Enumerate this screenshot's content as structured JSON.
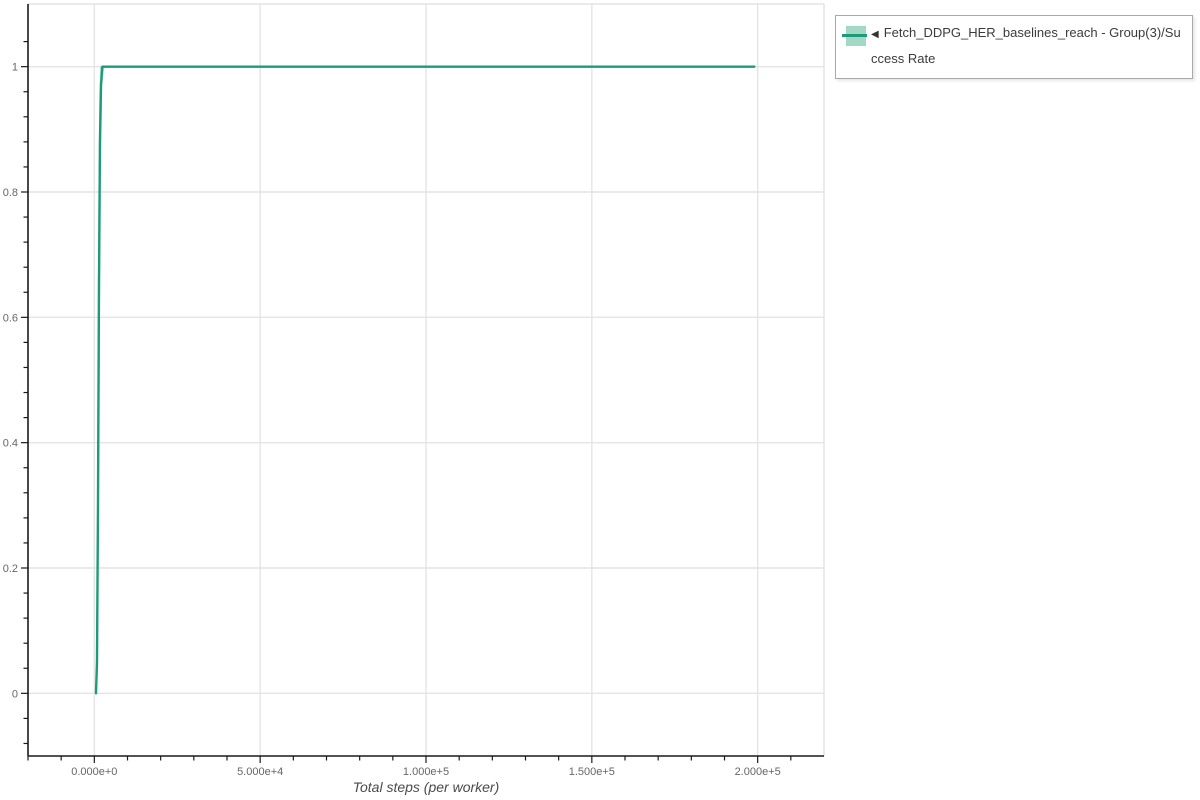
{
  "colors": {
    "background": "#ffffff",
    "line": "#1d9a78",
    "band": "rgba(29,154,120,0.30)",
    "swatch_fill": "#a3d8c4",
    "grid": "#e4e4e4",
    "spine": "#1a1a1a",
    "tick_label": "#666666",
    "axis_label": "#4a4a4a",
    "legend_border": "#a9a9a9",
    "legend_text": "#3b3b3b"
  },
  "legend": {
    "entries": [
      {
        "toggle_icon": "◀",
        "label": "Fetch_DDPG_HER_baselines_reach - Group(3)/Success Rate"
      }
    ]
  },
  "chart_data": {
    "type": "line",
    "title": "",
    "xlabel": "Total steps (per worker)",
    "ylabel": "",
    "xlim": [
      -20000,
      220000
    ],
    "ylim": [
      -0.1,
      1.1
    ],
    "grid": "major-both",
    "legend_position": "outside-top-right",
    "x_ticks": {
      "minor_step": 10000,
      "major": [
        {
          "value": 0,
          "label": "0.000e+0"
        },
        {
          "value": 50000,
          "label": "5.000e+4"
        },
        {
          "value": 100000,
          "label": "1.000e+5"
        },
        {
          "value": 150000,
          "label": "1.500e+5"
        },
        {
          "value": 200000,
          "label": "2.000e+5"
        }
      ]
    },
    "y_ticks": {
      "minor_step": 0.04,
      "major": [
        {
          "value": 0,
          "label": "0"
        },
        {
          "value": 0.2,
          "label": "0.2"
        },
        {
          "value": 0.4,
          "label": "0.4"
        },
        {
          "value": 0.6,
          "label": "0.6"
        },
        {
          "value": 0.8,
          "label": "0.8"
        },
        {
          "value": 1,
          "label": "1"
        }
      ]
    },
    "series": [
      {
        "name": "Fetch_DDPG_HER_baselines_reach - Group(3)/Success Rate",
        "x": [
          500,
          800,
          1100,
          1400,
          1700,
          2000,
          2400,
          3000,
          199000
        ],
        "mean": [
          0.0,
          0.05,
          0.3,
          0.65,
          0.88,
          0.97,
          1.0,
          1.0,
          1.0
        ],
        "min": [
          0.0,
          0.0,
          0.05,
          0.3,
          0.6,
          0.85,
          0.97,
          1.0,
          1.0
        ],
        "max": [
          0.0,
          0.25,
          0.7,
          0.92,
          1.0,
          1.0,
          1.0,
          1.0,
          1.0
        ]
      }
    ]
  }
}
